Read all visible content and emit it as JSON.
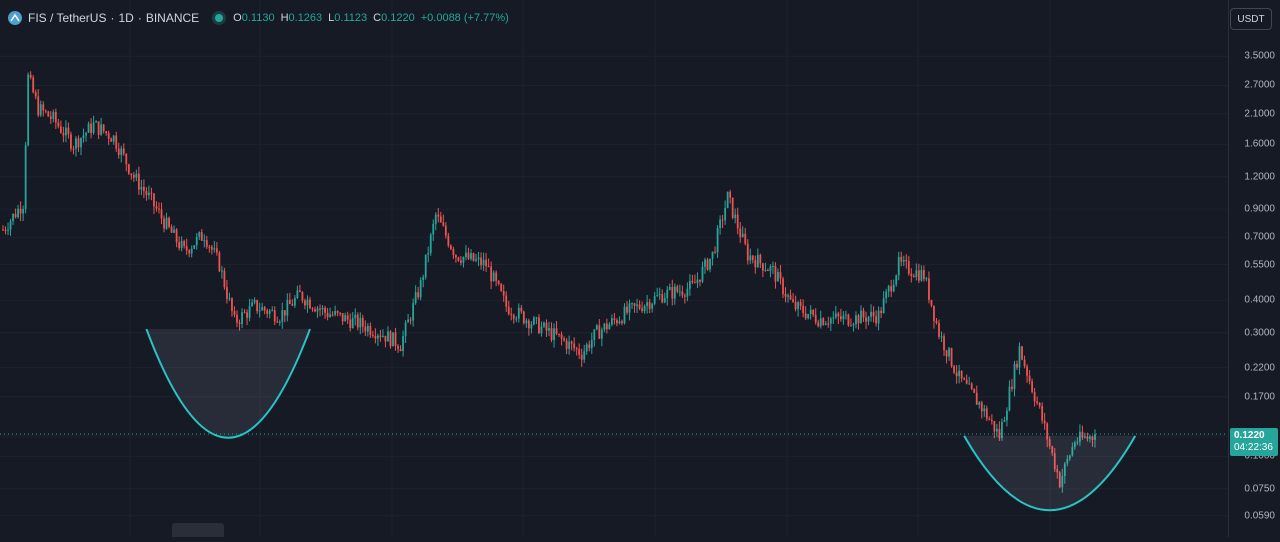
{
  "legend": {
    "symbol": "FIS / TetherUS",
    "interval": "1D",
    "exchange": "BINANCE",
    "separator": "·",
    "open_key": "O",
    "open": "0.1130",
    "high_key": "H",
    "high": "0.1263",
    "low_key": "L",
    "low": "0.1123",
    "close_key": "C",
    "close": "0.1220",
    "change": "+0.0088 (+7.77%)"
  },
  "currency_button": "USDT",
  "price_badge": {
    "price": "0.1220",
    "countdown": "04:22:36"
  },
  "colors": {
    "background": "#161a25",
    "up": "#26a69a",
    "down": "#ef5350",
    "pattern_curve": "#26c6c6",
    "grid": "#1e222d"
  },
  "chart_data": {
    "type": "candlestick",
    "y_scale": "log",
    "ylim": [
      0.052,
      4.5
    ],
    "y_ticks": [
      3.5,
      2.7,
      2.1,
      1.6,
      1.2,
      0.9,
      0.7,
      0.55,
      0.4,
      0.3,
      0.22,
      0.17,
      0.12,
      0.1,
      0.075,
      0.059
    ],
    "y_tick_labels": [
      "3.5000",
      "2.7000",
      "2.1000",
      "1.6000",
      "1.2000",
      "0.9000",
      "0.7000",
      "0.5500",
      "0.4000",
      "0.3000",
      "0.2200",
      "0.1700",
      "0.1200",
      "0.1000",
      "0.0750",
      "0.0590"
    ],
    "last_price": 0.122,
    "grid": true,
    "candle_count": 400,
    "price_path_anchors": [
      [
        0,
        0.75
      ],
      [
        8,
        0.95
      ],
      [
        10,
        2.9
      ],
      [
        14,
        2.2
      ],
      [
        20,
        2.0
      ],
      [
        28,
        1.6
      ],
      [
        36,
        1.9
      ],
      [
        44,
        1.7
      ],
      [
        52,
        1.2
      ],
      [
        58,
        1.0
      ],
      [
        66,
        0.75
      ],
      [
        72,
        0.62
      ],
      [
        80,
        0.72
      ],
      [
        86,
        0.55
      ],
      [
        92,
        0.33
      ],
      [
        100,
        0.38
      ],
      [
        110,
        0.35
      ],
      [
        118,
        0.42
      ],
      [
        128,
        0.36
      ],
      [
        140,
        0.33
      ],
      [
        150,
        0.3
      ],
      [
        158,
        0.27
      ],
      [
        166,
        0.46
      ],
      [
        172,
        0.85
      ],
      [
        180,
        0.6
      ],
      [
        192,
        0.55
      ],
      [
        200,
        0.38
      ],
      [
        210,
        0.33
      ],
      [
        220,
        0.29
      ],
      [
        230,
        0.25
      ],
      [
        236,
        0.3
      ],
      [
        248,
        0.36
      ],
      [
        262,
        0.42
      ],
      [
        274,
        0.45
      ],
      [
        282,
        0.6
      ],
      [
        288,
        1.0
      ],
      [
        296,
        0.6
      ],
      [
        306,
        0.52
      ],
      [
        314,
        0.38
      ],
      [
        324,
        0.34
      ],
      [
        336,
        0.34
      ],
      [
        348,
        0.35
      ],
      [
        356,
        0.55
      ],
      [
        366,
        0.5
      ],
      [
        372,
        0.3
      ],
      [
        380,
        0.2
      ],
      [
        388,
        0.16
      ],
      [
        396,
        0.12
      ],
      [
        404,
        0.26
      ],
      [
        412,
        0.15
      ],
      [
        420,
        0.08
      ],
      [
        426,
        0.115
      ],
      [
        434,
        0.12
      ]
    ],
    "pattern_markers": [
      {
        "label": "rounding-bottom-1",
        "left_x": 57,
        "right_x": 122,
        "rim": 0.31,
        "bottom": 0.118
      },
      {
        "label": "rounding-bottom-2",
        "left_x": 382,
        "right_x": 450,
        "rim": 0.12,
        "bottom": 0.062
      }
    ]
  }
}
